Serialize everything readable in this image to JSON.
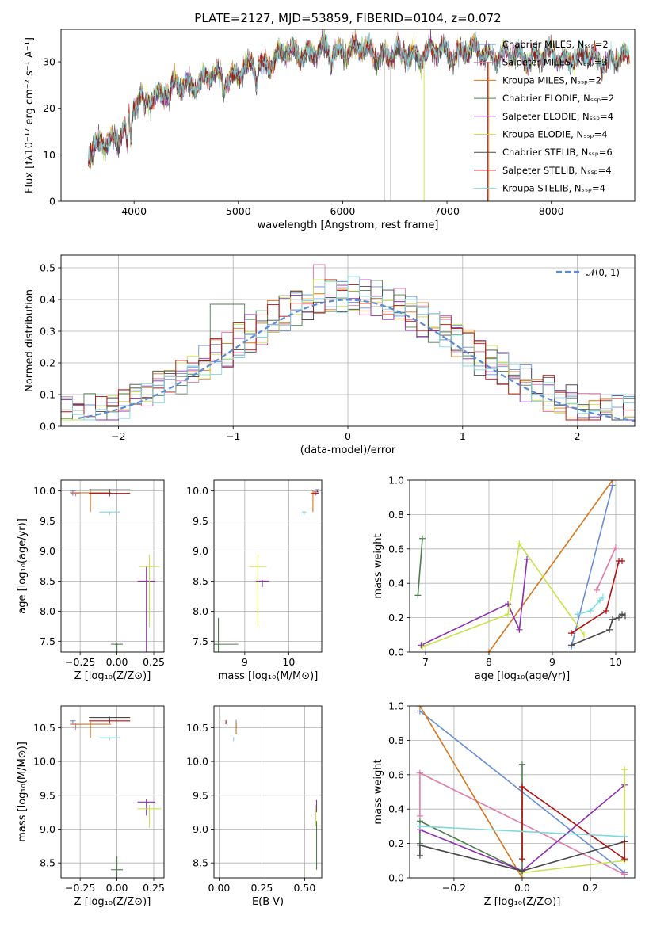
{
  "title": "PLATE=2127, MJD=53859, FIBERID=0104, z=0.072",
  "colors": {
    "Chabrier MILES": "#6a8fd6",
    "Salpeter MILES": "#e07aa8",
    "Kroupa MILES": "#d7751c",
    "Chabrier ELODIE": "#4e7d4e",
    "Salpeter ELODIE": "#8e2eb0",
    "Kroupa ELODIE": "#c8e34a",
    "Chabrier STELIB": "#4a4a4a",
    "Salpeter STELIB": "#b01010",
    "Kroupa STELIB": "#7fd8e0",
    "normal": "#5b8bd8"
  },
  "chart_data": [
    {
      "id": "spectrum",
      "type": "line",
      "title": "PLATE=2127, MJD=53859, FIBERID=0104, z=0.072",
      "xlabel": "wavelength [Angstrom, rest frame]",
      "ylabel": "Flux [fλ10⁻¹⁷ erg cm⁻² s⁻¹ A⁻¹]",
      "xlim": [
        3300,
        8800
      ],
      "ylim": [
        0,
        37
      ],
      "xticks": [
        4000,
        5000,
        6000,
        7000,
        8000
      ],
      "yticks": [
        0,
        10,
        20,
        30
      ],
      "grid": false,
      "legend_position": "top-right",
      "series": [
        {
          "name": "Chabrier MILES, Nₛₛₚ=2",
          "color": "#6a8fd6"
        },
        {
          "name": "Salpeter MILES, Nₛₛₚ=3",
          "color": "#e07aa8"
        },
        {
          "name": "Kroupa MILES, Nₛₛₚ=2",
          "color": "#d7751c"
        },
        {
          "name": "Chabrier ELODIE, Nₛₛₚ=2",
          "color": "#4e7d4e"
        },
        {
          "name": "Salpeter ELODIE, Nₛₛₚ=4",
          "color": "#8e2eb0"
        },
        {
          "name": "Kroupa ELODIE, Nₛₛₚ=4",
          "color": "#c8e34a"
        },
        {
          "name": "Chabrier STELIB, Nₛₛₚ=6",
          "color": "#4a4a4a"
        },
        {
          "name": "Salpeter STELIB, Nₛₛₚ=4",
          "color": "#b01010"
        },
        {
          "name": "Kroupa STELIB, Nₛₛₚ=4",
          "color": "#7fd8e0"
        }
      ],
      "continuum": [
        [
          3560,
          10
        ],
        [
          3700,
          12
        ],
        [
          3850,
          14
        ],
        [
          3920,
          17
        ],
        [
          4000,
          20
        ],
        [
          4100,
          22
        ],
        [
          4300,
          23.5
        ],
        [
          4500,
          25
        ],
        [
          4800,
          26.5
        ],
        [
          5000,
          27.5
        ],
        [
          5200,
          29
        ],
        [
          5400,
          31
        ],
        [
          5600,
          31.8
        ],
        [
          5900,
          32
        ],
        [
          6100,
          32.5
        ],
        [
          6400,
          31.5
        ],
        [
          6700,
          31.5
        ],
        [
          7000,
          32
        ],
        [
          7200,
          32
        ],
        [
          7400,
          31.5
        ],
        [
          7800,
          31
        ],
        [
          8400,
          30.5
        ],
        [
          8750,
          30
        ]
      ]
    },
    {
      "id": "residuals",
      "type": "bar",
      "xlabel": "(data-model)/error",
      "ylabel": "Normed distribution",
      "xlim": [
        -2.5,
        2.5
      ],
      "ylim": [
        0,
        0.54
      ],
      "xticks": [
        -2,
        -1,
        0,
        1,
        2
      ],
      "yticks": [
        0.0,
        0.1,
        0.2,
        0.3,
        0.4,
        0.5
      ],
      "grid": true,
      "legend_position": "top-right",
      "legend": "𝒩(0, 1)",
      "bin_width": 0.1
    },
    {
      "id": "age-vs-Z",
      "type": "scatter",
      "xlabel": "Z [log₁₀(Z/Z⊙)]",
      "ylabel": "age  [log₁₀(age/yr)]",
      "xlim": [
        -0.38,
        0.32
      ],
      "ylim": [
        7.32,
        10.18
      ],
      "xticks": [
        -0.25,
        0.0,
        0.25
      ],
      "xticklabels": [
        "−0.25",
        "0.00",
        "0.25"
      ],
      "yticks": [
        7.5,
        8.0,
        8.5,
        9.0,
        9.5,
        10.0
      ],
      "grid": true,
      "points": [
        {
          "m": "Chabrier MILES",
          "x": -0.3,
          "y": 10.0,
          "xerr": 0.02,
          "yerr": 0.08
        },
        {
          "m": "Salpeter MILES",
          "x": -0.28,
          "y": 9.96,
          "xerr": 0.03,
          "yerr": 0.05
        },
        {
          "m": "Kroupa MILES",
          "x": -0.18,
          "y": 9.97,
          "xerr": 0.14,
          "yerr": 0.32
        },
        {
          "m": "Chabrier ELODIE",
          "x": 0.0,
          "y": 7.45,
          "xerr": 0.04,
          "yerr": 0.15
        },
        {
          "m": "Salpeter ELODIE",
          "x": 0.2,
          "y": 8.5,
          "xerr": 0.06,
          "yerr": 1.25
        },
        {
          "m": "Kroupa ELODIE",
          "x": 0.22,
          "y": 8.74,
          "xerr": 0.07,
          "yerr": 1.0
        },
        {
          "m": "Chabrier STELIB",
          "x": -0.05,
          "y": 10.02,
          "xerr": 0.14,
          "yerr": 0.06
        },
        {
          "m": "Salpeter STELIB",
          "x": -0.05,
          "y": 9.96,
          "xerr": 0.14,
          "yerr": 0.05
        },
        {
          "m": "Kroupa STELIB",
          "x": -0.05,
          "y": 9.65,
          "xerr": 0.07,
          "yerr": 0.05
        }
      ]
    },
    {
      "id": "age-vs-mass",
      "type": "scatter",
      "xlabel": "mass [log₁₀(M/M⊙)]",
      "ylabel": "",
      "xlim": [
        8.3,
        10.75
      ],
      "ylim": [
        7.32,
        10.18
      ],
      "xticks": [
        9,
        10
      ],
      "yticks": [
        7.5,
        8.0,
        8.5,
        9.0,
        9.5,
        10.0
      ],
      "grid": true,
      "points": [
        {
          "m": "Chabrier MILES",
          "x": 10.62,
          "y": 9.99,
          "xerr": 0.05,
          "yerr": 0.05
        },
        {
          "m": "Salpeter MILES",
          "x": 10.62,
          "y": 9.98,
          "xerr": 0.06,
          "yerr": 0.05
        },
        {
          "m": "Kroupa MILES",
          "x": 10.55,
          "y": 9.95,
          "xerr": 0.08,
          "yerr": 0.3
        },
        {
          "m": "Chabrier ELODIE",
          "x": 8.4,
          "y": 7.45,
          "xerr": 0.45,
          "yerr": 2.2
        },
        {
          "m": "Salpeter ELODIE",
          "x": 9.4,
          "y": 8.5,
          "xerr": 0.15,
          "yerr": 0.1
        },
        {
          "m": "Kroupa ELODIE",
          "x": 9.3,
          "y": 8.74,
          "xerr": 0.2,
          "yerr": 1.0
        },
        {
          "m": "Chabrier STELIB",
          "x": 10.65,
          "y": 10.02,
          "xerr": 0.05,
          "yerr": 0.04
        },
        {
          "m": "Salpeter STELIB",
          "x": 10.6,
          "y": 9.96,
          "xerr": 0.08,
          "yerr": 0.04
        },
        {
          "m": "Kroupa STELIB",
          "x": 10.35,
          "y": 9.65,
          "xerr": 0.05,
          "yerr": 0.05
        }
      ]
    },
    {
      "id": "weight-vs-age",
      "type": "line",
      "xlabel": "age  [log₁₀(age/yr)]",
      "ylabel": "mass weight",
      "xlim": [
        6.75,
        10.3
      ],
      "ylim": [
        0,
        1
      ],
      "xticks": [
        7,
        8,
        9,
        10
      ],
      "yticks": [
        0.0,
        0.2,
        0.4,
        0.6,
        0.8,
        1.0
      ],
      "grid": true,
      "series": [
        {
          "m": "Chabrier MILES",
          "x": [
            9.3,
            9.95
          ],
          "y": [
            0.03,
            0.97
          ]
        },
        {
          "m": "Salpeter MILES",
          "x": [
            9.7,
            10.0
          ],
          "y": [
            0.36,
            0.61
          ]
        },
        {
          "m": "Kroupa MILES",
          "x": [
            8.0,
            9.95
          ],
          "y": [
            0.0,
            1.0
          ]
        },
        {
          "m": "Chabrier ELODIE",
          "x": [
            6.88,
            6.95
          ],
          "y": [
            0.33,
            0.66
          ]
        },
        {
          "m": "Salpeter ELODIE",
          "x": [
            6.93,
            8.3,
            8.48,
            8.6
          ],
          "y": [
            0.04,
            0.28,
            0.13,
            0.54
          ]
        },
        {
          "m": "Kroupa ELODIE",
          "x": [
            6.95,
            8.3,
            8.48,
            9.5
          ],
          "y": [
            0.03,
            0.22,
            0.63,
            0.1
          ]
        },
        {
          "m": "Chabrier STELIB",
          "x": [
            9.3,
            9.9,
            9.95,
            10.05,
            10.1,
            10.15
          ],
          "y": [
            0.04,
            0.13,
            0.19,
            0.2,
            0.22,
            0.21
          ]
        },
        {
          "m": "Salpeter STELIB",
          "x": [
            9.3,
            9.85,
            10.05,
            10.1
          ],
          "y": [
            0.11,
            0.24,
            0.53,
            0.53
          ]
        },
        {
          "m": "Kroupa STELIB",
          "x": [
            9.4,
            9.6,
            9.75,
            9.8
          ],
          "y": [
            0.22,
            0.24,
            0.3,
            0.32
          ]
        }
      ]
    },
    {
      "id": "mass-vs-Z",
      "type": "scatter",
      "xlabel": "Z [log₁₀(Z/Z⊙)]",
      "ylabel": "mass [log₁₀(M/M⊙)]",
      "xlim": [
        -0.38,
        0.32
      ],
      "ylim": [
        8.28,
        10.82
      ],
      "xticks": [
        -0.25,
        0.0,
        0.25
      ],
      "xticklabels": [
        "−0.25",
        "0.00",
        "0.25"
      ],
      "yticks": [
        8.5,
        9.0,
        9.5,
        10.0,
        10.5
      ],
      "grid": true,
      "points": [
        {
          "m": "Chabrier MILES",
          "x": -0.3,
          "y": 10.6,
          "xerr": 0.02,
          "yerr": 0.05
        },
        {
          "m": "Salpeter MILES",
          "x": -0.28,
          "y": 10.55,
          "xerr": 0.03,
          "yerr": 0.08
        },
        {
          "m": "Kroupa MILES",
          "x": -0.18,
          "y": 10.55,
          "xerr": 0.14,
          "yerr": 0.2
        },
        {
          "m": "Chabrier ELODIE",
          "x": 0.0,
          "y": 8.4,
          "xerr": 0.04,
          "yerr": 1.0
        },
        {
          "m": "Salpeter ELODIE",
          "x": 0.2,
          "y": 9.4,
          "xerr": 0.06,
          "yerr": 0.2
        },
        {
          "m": "Kroupa ELODIE",
          "x": 0.22,
          "y": 9.3,
          "xerr": 0.08,
          "yerr": 0.28
        },
        {
          "m": "Chabrier STELIB",
          "x": -0.05,
          "y": 10.65,
          "xerr": 0.14,
          "yerr": 0.06
        },
        {
          "m": "Salpeter STELIB",
          "x": -0.05,
          "y": 10.6,
          "xerr": 0.14,
          "yerr": 0.04
        },
        {
          "m": "Kroupa STELIB",
          "x": -0.05,
          "y": 10.35,
          "xerr": 0.07,
          "yerr": 0.04
        }
      ]
    },
    {
      "id": "mass-vs-EBV",
      "type": "scatter",
      "xlabel": "E(B-V)",
      "ylabel": "",
      "xlim": [
        -0.03,
        0.6
      ],
      "ylim": [
        8.28,
        10.82
      ],
      "xticks": [
        0.0,
        0.25,
        0.5
      ],
      "xticklabels": [
        "0.00",
        "0.25",
        "0.50"
      ],
      "yticks": [
        8.5,
        9.0,
        9.5,
        10.0,
        10.5
      ],
      "grid": true,
      "points": [
        {
          "m": "Chabrier MILES",
          "x": 0.1,
          "y": 10.6,
          "xerr": 0.0,
          "yerr": 0.06
        },
        {
          "m": "Salpeter MILES",
          "x": 0.1,
          "y": 10.55,
          "xerr": 0.0,
          "yerr": 0.06
        },
        {
          "m": "Kroupa MILES",
          "x": 0.1,
          "y": 10.55,
          "xerr": 0.0,
          "yerr": 0.15
        },
        {
          "m": "Chabrier ELODIE",
          "x": 0.57,
          "y": 9.0,
          "xerr": 0.0,
          "yerr": 0.6
        },
        {
          "m": "Salpeter ELODIE",
          "x": 0.57,
          "y": 9.4,
          "xerr": 0.0,
          "yerr": 0.15
        },
        {
          "m": "Kroupa ELODIE",
          "x": 0.565,
          "y": 9.3,
          "xerr": 0.0,
          "yerr": 0.25
        },
        {
          "m": "Chabrier STELIB",
          "x": 0.005,
          "y": 10.65,
          "xerr": 0.0,
          "yerr": 0.06
        },
        {
          "m": "Salpeter STELIB",
          "x": 0.04,
          "y": 10.6,
          "xerr": 0.0,
          "yerr": 0.05
        },
        {
          "m": "Kroupa STELIB",
          "x": 0.085,
          "y": 10.35,
          "xerr": 0.0,
          "yerr": 0.05
        }
      ]
    },
    {
      "id": "weight-vs-Z",
      "type": "line",
      "xlabel": "Z [log₁₀(Z/Z⊙)]",
      "ylabel": "mass weight",
      "xlim": [
        -0.33,
        0.33
      ],
      "ylim": [
        0,
        1
      ],
      "xticks": [
        -0.2,
        0.0,
        0.2
      ],
      "xticklabels": [
        "−0.2",
        "0.0",
        "0.2"
      ],
      "yticks": [
        0.0,
        0.2,
        0.4,
        0.6,
        0.8,
        1.0
      ],
      "grid": true,
      "series": [
        {
          "m": "Chabrier MILES",
          "x": [
            -0.3,
            0.3
          ],
          "y": [
            0.97,
            0.03
          ]
        },
        {
          "m": "Salpeter MILES",
          "x": [
            -0.3,
            -0.3,
            0.3
          ],
          "y": [
            0.36,
            0.61,
            0.02
          ]
        },
        {
          "m": "Kroupa MILES",
          "x": [
            -0.3,
            0.0
          ],
          "y": [
            1.0,
            0.0
          ]
        },
        {
          "m": "Chabrier ELODIE",
          "x": [
            -0.3,
            -0.3,
            0.0,
            0.0
          ],
          "y": [
            0.2,
            0.33,
            0.04,
            0.66
          ]
        },
        {
          "m": "Salpeter ELODIE",
          "x": [
            -0.3,
            0.0,
            0.3
          ],
          "y": [
            0.28,
            0.04,
            0.54
          ]
        },
        {
          "m": "Kroupa ELODIE",
          "x": [
            0.0,
            0.3,
            0.3
          ],
          "y": [
            0.03,
            0.1,
            0.63
          ]
        },
        {
          "m": "Chabrier STELIB",
          "x": [
            -0.3,
            -0.3,
            0.0,
            0.3
          ],
          "y": [
            0.13,
            0.19,
            0.04,
            0.21
          ]
        },
        {
          "m": "Salpeter STELIB",
          "x": [
            0.0,
            0.0,
            0.3,
            0.3
          ],
          "y": [
            0.11,
            0.53,
            0.11,
            0.24
          ]
        },
        {
          "m": "Kroupa STELIB",
          "x": [
            -0.3,
            0.3
          ],
          "y": [
            0.3,
            0.24
          ]
        }
      ]
    }
  ]
}
